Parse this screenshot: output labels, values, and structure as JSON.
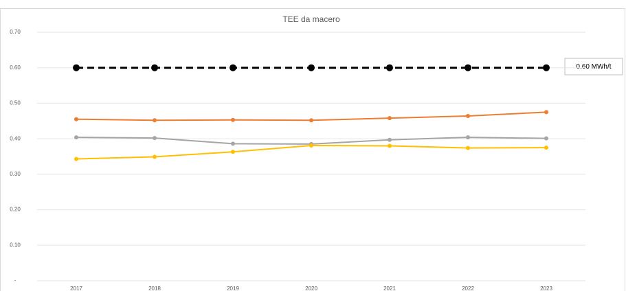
{
  "chart_data": {
    "type": "line",
    "title": "TEE da macero",
    "categories": [
      "2017",
      "2018",
      "2019",
      "2020",
      "2021",
      "2022",
      "2023"
    ],
    "series": [
      {
        "color": "#000000",
        "dashed": true,
        "values": [
          0.6,
          0.6,
          0.6,
          0.6,
          0.6,
          0.6,
          0.6
        ]
      },
      {
        "color": "#ed7d31",
        "values": [
          0.455,
          0.452,
          0.453,
          0.452,
          0.458,
          0.464,
          0.475
        ]
      },
      {
        "color": "#a5a5a5",
        "values": [
          0.404,
          0.402,
          0.386,
          0.385,
          0.397,
          0.404,
          0.401
        ]
      },
      {
        "color": "#ffc000",
        "values": [
          0.343,
          0.349,
          0.363,
          0.381,
          0.38,
          0.374,
          0.375
        ]
      }
    ],
    "annotation": "0.60 MWh/t",
    "ylim": [
      0,
      0.7
    ],
    "yticks": [
      {
        "value": 0,
        "label": "-"
      },
      {
        "value": 0.1,
        "label": "0.10"
      },
      {
        "value": 0.2,
        "label": "0.20"
      },
      {
        "value": 0.3,
        "label": "0.30"
      },
      {
        "value": 0.4,
        "label": "0.40"
      },
      {
        "value": 0.5,
        "label": "0.50"
      },
      {
        "value": 0.6,
        "label": "0.60"
      },
      {
        "value": 0.7,
        "label": "0.70"
      }
    ],
    "grid": true
  }
}
